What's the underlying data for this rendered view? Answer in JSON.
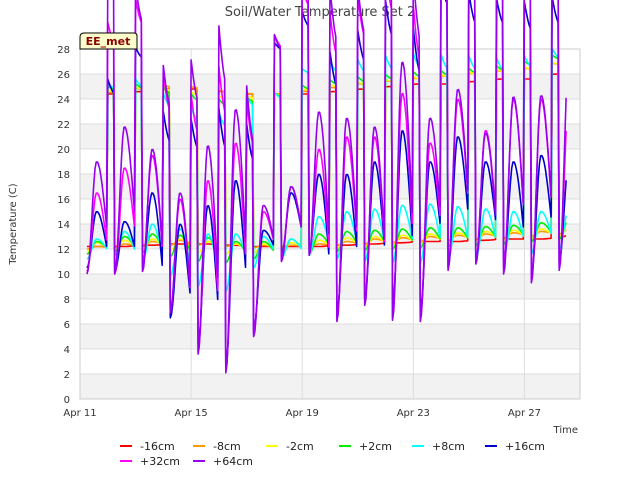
{
  "chart_data": {
    "type": "line",
    "title": "Soil/Water Temperature Set 2",
    "site_label": "EE_met",
    "xlabel": "Time",
    "ylabel": "Temperature (C)",
    "ylim": [
      0,
      28
    ],
    "yticks": [
      0,
      2,
      4,
      6,
      8,
      10,
      12,
      14,
      16,
      18,
      20,
      22,
      24,
      26,
      28
    ],
    "xlim": [
      "2020-04-11",
      "2020-04-29"
    ],
    "xticks": [
      {
        "date": "2020-04-11",
        "label": "Apr 11"
      },
      {
        "date": "2020-04-15",
        "label": "Apr 15"
      },
      {
        "date": "2020-04-19",
        "label": "Apr 19"
      },
      {
        "date": "2020-04-23",
        "label": "Apr 23"
      },
      {
        "date": "2020-04-27",
        "label": "Apr 27"
      }
    ],
    "grid": true,
    "legend_position": "bottom",
    "peak_dates": [
      "2020-04-11",
      "2020-04-12",
      "2020-04-13",
      "2020-04-14",
      "2020-04-15",
      "2020-04-16",
      "2020-04-17",
      "2020-04-18",
      "2020-04-19",
      "2020-04-20",
      "2020-04-21",
      "2020-04-22",
      "2020-04-23",
      "2020-04-24",
      "2020-04-25",
      "2020-04-26",
      "2020-04-27",
      "2020-04-28"
    ],
    "series": [
      {
        "name": "-16cm",
        "color": "#ff0000",
        "min": [
          12.2,
          12.2,
          12.3,
          12.4,
          12.4,
          12.3,
          12.2,
          12.2,
          12.2,
          12.3,
          12.4,
          12.5,
          12.6,
          12.6,
          12.7,
          12.8,
          12.8,
          12.9
        ],
        "max": [
          12.2,
          12.2,
          12.3,
          12.4,
          12.4,
          12.3,
          12.2,
          12.2,
          12.2,
          12.3,
          12.4,
          12.5,
          12.6,
          12.6,
          12.7,
          12.8,
          12.8,
          13.1
        ]
      },
      {
        "name": "-8cm",
        "color": "#ff9900",
        "min": [
          12.0,
          12.1,
          12.2,
          12.3,
          12.3,
          12.2,
          12.1,
          12.1,
          12.2,
          12.3,
          12.4,
          12.5,
          12.6,
          12.7,
          12.8,
          12.9,
          13.0,
          13.2
        ],
        "max": [
          12.2,
          12.4,
          12.6,
          12.7,
          12.6,
          12.4,
          12.3,
          12.3,
          12.4,
          12.6,
          12.8,
          12.9,
          13.0,
          13.1,
          13.2,
          13.3,
          13.4,
          13.6
        ]
      },
      {
        "name": "-2cm",
        "color": "#ffff00",
        "min": [
          11.8,
          11.9,
          12.0,
          11.9,
          11.7,
          11.6,
          11.7,
          11.8,
          12.0,
          12.1,
          12.2,
          12.3,
          12.4,
          12.5,
          12.6,
          12.7,
          12.8,
          13.0
        ],
        "max": [
          12.5,
          12.7,
          12.8,
          12.8,
          12.6,
          12.4,
          12.4,
          12.5,
          12.7,
          12.9,
          13.0,
          13.1,
          13.2,
          13.3,
          13.4,
          13.5,
          13.6,
          13.8
        ]
      },
      {
        "name": "+2cm",
        "color": "#00ee00",
        "min": [
          11.6,
          11.8,
          11.7,
          11.4,
          11.0,
          10.9,
          11.2,
          11.4,
          11.6,
          11.8,
          11.9,
          12.0,
          12.1,
          12.2,
          12.3,
          12.4,
          12.6,
          12.8
        ],
        "max": [
          12.6,
          13.0,
          13.2,
          13.1,
          12.9,
          12.6,
          12.6,
          12.8,
          13.2,
          13.4,
          13.5,
          13.6,
          13.7,
          13.7,
          13.8,
          13.9,
          14.1,
          14.4
        ]
      },
      {
        "name": "+8cm",
        "color": "#00ffff",
        "min": [
          11.2,
          11.5,
          11.0,
          9.8,
          9.0,
          8.6,
          10.5,
          11.3,
          11.5,
          11.2,
          11.0,
          10.9,
          10.9,
          11.0,
          11.2,
          11.3,
          11.6,
          12.0
        ],
        "max": [
          12.8,
          13.4,
          14.0,
          13.6,
          13.2,
          13.2,
          13.0,
          12.8,
          14.6,
          15.0,
          15.2,
          15.5,
          15.6,
          15.4,
          15.2,
          15.0,
          15.0,
          15.3
        ]
      },
      {
        "name": "+16cm",
        "color": "#0000cc",
        "min": [
          10.5,
          10.2,
          10.8,
          6.5,
          4.5,
          2.5,
          5.5,
          11.5,
          11.8,
          7.0,
          8.0,
          7.5,
          7.0,
          10.5,
          11.0,
          11.0,
          10.0,
          11.0
        ],
        "max": [
          15.0,
          14.2,
          16.5,
          14.0,
          15.5,
          17.5,
          13.5,
          16.5,
          18.0,
          18.0,
          19.0,
          21.5,
          19.0,
          21.0,
          19.0,
          19.0,
          19.5,
          19.0
        ]
      },
      {
        "name": "+32cm",
        "color": "#ff00ff",
        "min": [
          10.2,
          10.0,
          10.5,
          7.0,
          3.8,
          2.3,
          5.2,
          11.2,
          11.5,
          6.5,
          8.0,
          6.5,
          6.5,
          10.5,
          11.0,
          10.5,
          9.5,
          10.5
        ],
        "max": [
          16.5,
          18.5,
          19.5,
          16.0,
          17.5,
          20.5,
          15.0,
          17.0,
          20.0,
          21.0,
          21.0,
          24.5,
          20.5,
          24.0,
          21.5,
          24.0,
          24.0,
          24.0
        ]
      },
      {
        "name": "+64cm",
        "color": "#9900ee",
        "min": [
          10.0,
          10.0,
          10.2,
          6.9,
          3.6,
          2.1,
          5.0,
          11.0,
          11.5,
          6.2,
          7.5,
          6.3,
          6.2,
          10.3,
          10.8,
          10.0,
          9.3,
          10.3
        ],
        "max": [
          19.0,
          21.8,
          20.0,
          16.5,
          20.3,
          23.2,
          15.5,
          17.0,
          23.0,
          22.5,
          21.8,
          27.0,
          22.5,
          24.8,
          21.3,
          24.2,
          24.3,
          27.3
        ]
      }
    ]
  }
}
